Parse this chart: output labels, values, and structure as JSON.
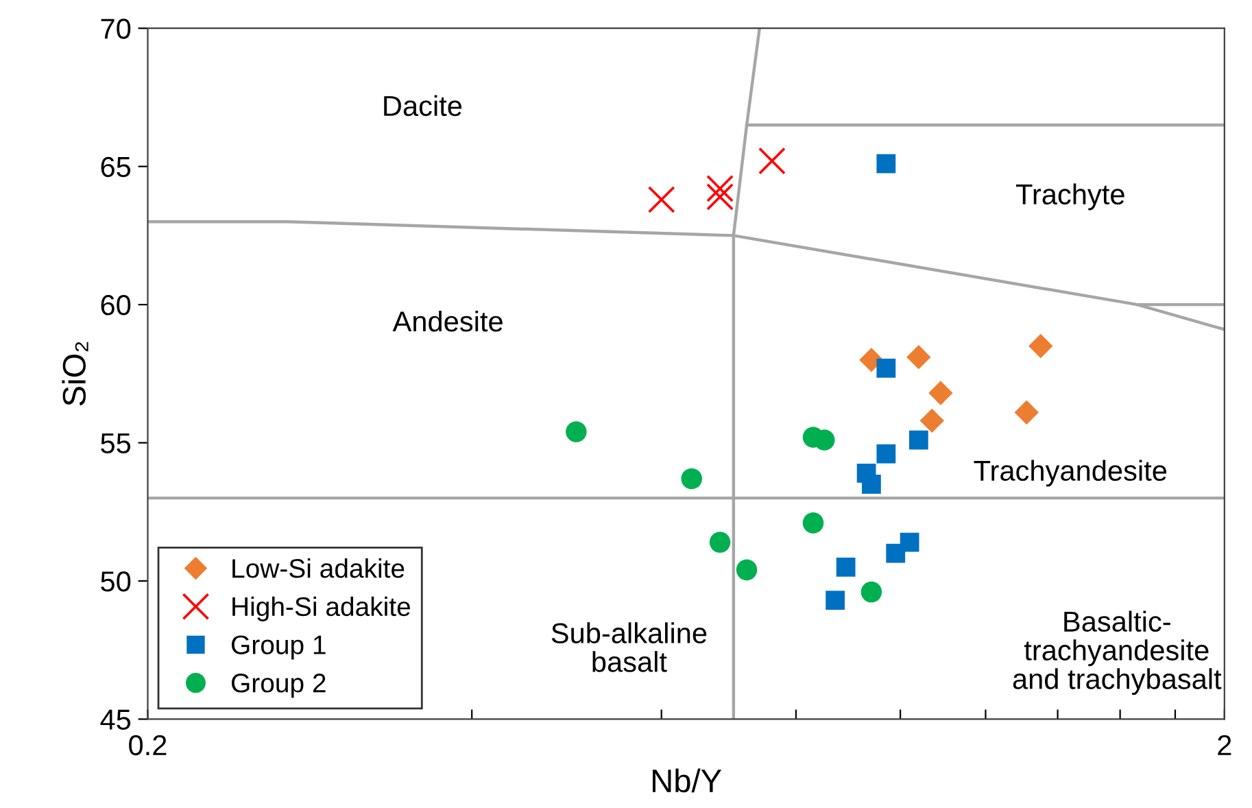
{
  "chart_data": {
    "type": "scatter",
    "xlabel": "Nb/Y",
    "ylabel": "SiO₂",
    "log": "x",
    "xlim": [
      0.2,
      2
    ],
    "ylim": [
      45,
      70
    ],
    "xticks": [
      0.2,
      {
        "value": 0.4,
        "label": null
      },
      {
        "value": 0.6,
        "label": null
      },
      {
        "value": 0.8,
        "label": null
      },
      {
        "value": 1.0,
        "label": null
      },
      {
        "value": 1.2,
        "label": null
      },
      {
        "value": 1.4,
        "label": null
      },
      {
        "value": 1.6,
        "label": null
      },
      {
        "value": 1.8,
        "label": null
      },
      2
    ],
    "yticks": [
      45,
      50,
      55,
      60,
      65,
      70
    ],
    "grid": false,
    "legend": "bottom left",
    "series": [
      {
        "name": "Low-Si adakite",
        "color": "#ed7d31",
        "marker": "diamond",
        "x": [
          0.94,
          1.04,
          1.09,
          1.07,
          1.35,
          1.31
        ],
        "values": [
          58.0,
          58.1,
          56.8,
          55.8,
          58.5,
          56.1
        ]
      },
      {
        "name": "High-Si adakite",
        "color": "#ff0000",
        "marker": "cross",
        "x": [
          0.6,
          0.68,
          0.68,
          0.76
        ],
        "values": [
          63.8,
          64.2,
          63.9,
          65.2
        ]
      },
      {
        "name": "Group 1",
        "color": "#0070c0",
        "marker": "square",
        "x": [
          0.97,
          0.97,
          0.97,
          1.04,
          0.93,
          0.94,
          0.89,
          0.87,
          0.99,
          1.02
        ],
        "values": [
          65.1,
          57.7,
          54.6,
          55.1,
          53.9,
          53.5,
          50.5,
          49.3,
          51.0,
          51.4
        ]
      },
      {
        "name": "Group 2",
        "color": "#00b050",
        "marker": "circle",
        "x": [
          0.5,
          0.64,
          0.83,
          0.85,
          0.83,
          0.68,
          0.72,
          0.94
        ],
        "values": [
          55.4,
          53.7,
          55.2,
          55.1,
          52.1,
          51.4,
          50.4,
          49.6
        ]
      },
      {
        "type": "line",
        "color": "#a6a6a6",
        "marker": "none",
        "x": [
          0.2,
          0.27,
          0.7,
          1.66,
          2
        ],
        "values": [
          63.0,
          63.0,
          62.5,
          60.0,
          59.1
        ]
      },
      {
        "type": "line",
        "color": "#a6a6a6",
        "marker": "none",
        "x": [
          0.7,
          0.7,
          0.72,
          0.74
        ],
        "values": [
          45,
          62.5,
          66.5,
          70
        ]
      },
      {
        "type": "line",
        "color": "#a6a6a6",
        "marker": "none",
        "x": [
          0.72,
          2
        ],
        "values": [
          66.5,
          66.5
        ]
      },
      {
        "type": "line",
        "color": "#a6a6a6",
        "marker": "none",
        "x": [
          1.66,
          2
        ],
        "values": [
          60.0,
          60.0
        ]
      },
      {
        "type": "line",
        "color": "#a6a6a6",
        "marker": "none",
        "x": [
          0.2,
          2
        ],
        "values": [
          53.0,
          53.0
        ]
      }
    ],
    "annotations": [
      "Dacite",
      "Andesite",
      "Trachyte",
      "Trachyandesite",
      "Basaltic-\ntrachyandesite\nand trachybasalt",
      "Sub-alkaline\nbasalt"
    ]
  }
}
